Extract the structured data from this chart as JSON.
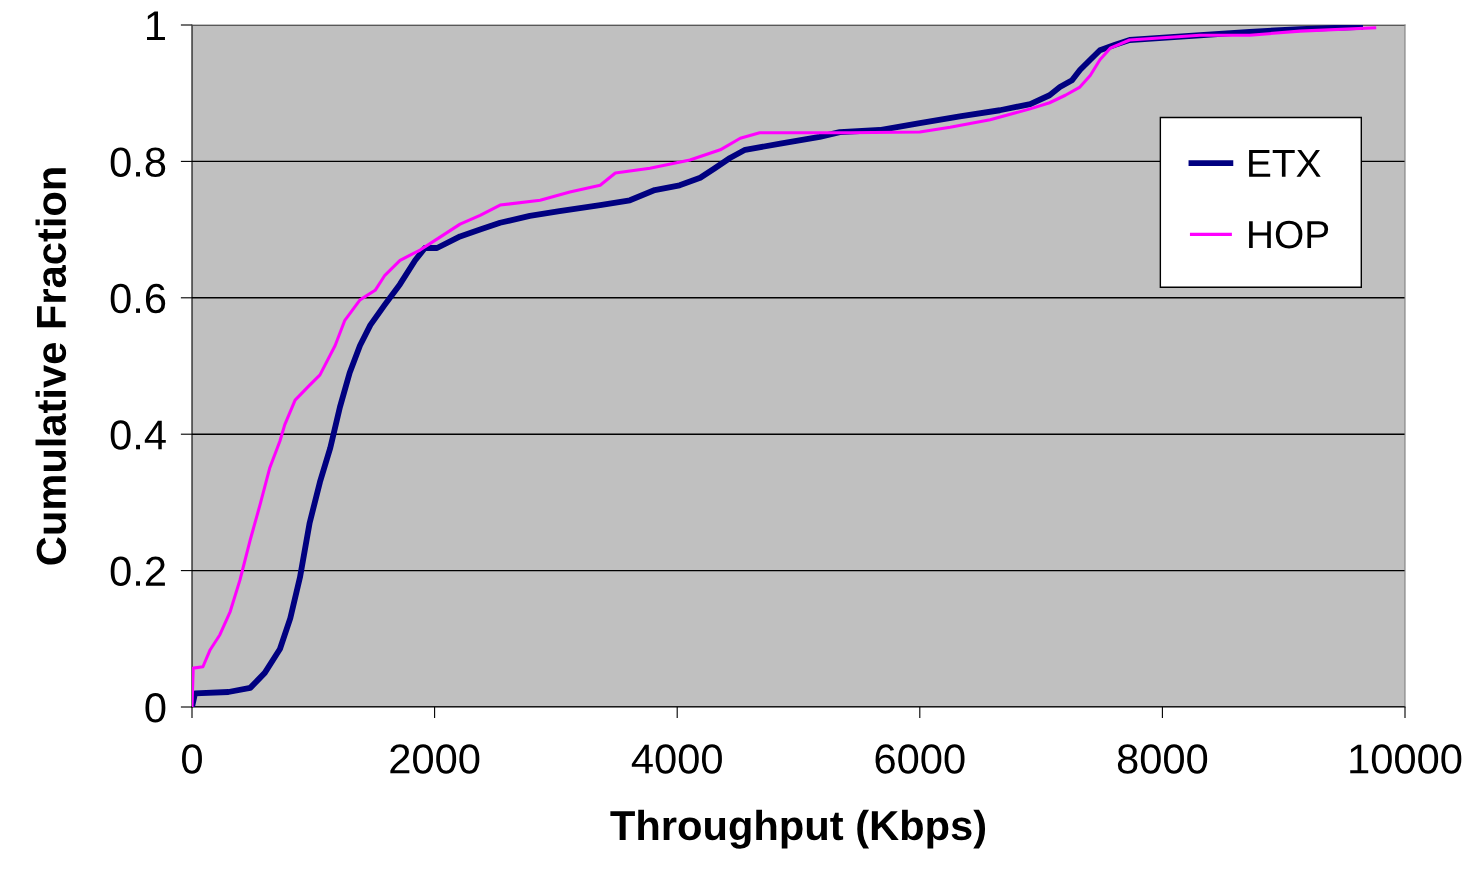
{
  "chart_data": {
    "type": "line",
    "xlabel": "Throughput (Kbps)",
    "ylabel": "Cumulative Fraction",
    "xlim": [
      0,
      10000
    ],
    "xticks": [
      0,
      2000,
      4000,
      6000,
      8000,
      10000
    ],
    "ylim": [
      0,
      1
    ],
    "yticks": [
      0,
      0.2,
      0.4,
      0.6,
      0.8,
      1
    ],
    "grid": "y",
    "legend": "right",
    "marker": "none",
    "line_style": "solid",
    "series": [
      {
        "name": "ETX",
        "color": "#000080",
        "x": [
          0,
          25,
          300,
          480,
          600,
          725,
          810,
          890,
          970,
          1055,
          1140,
          1220,
          1300,
          1385,
          1470,
          1590,
          1715,
          1840,
          1920,
          2020,
          2210,
          2375,
          2540,
          2785,
          3030,
          3365,
          3610,
          3815,
          4020,
          4190,
          4310,
          4435,
          4560,
          4850,
          5175,
          5340,
          5670,
          6000,
          6330,
          6660,
          6910,
          7070,
          7155,
          7255,
          7320,
          7405,
          7485,
          7610,
          7730,
          8310,
          8720,
          9135,
          9630
        ],
        "values": [
          0,
          0.02,
          0.022,
          0.028,
          0.05,
          0.085,
          0.13,
          0.19,
          0.27,
          0.33,
          0.38,
          0.44,
          0.49,
          0.53,
          0.56,
          0.59,
          0.62,
          0.655,
          0.673,
          0.673,
          0.69,
          0.7,
          0.71,
          0.72,
          0.727,
          0.736,
          0.743,
          0.758,
          0.765,
          0.776,
          0.79,
          0.805,
          0.817,
          0.826,
          0.836,
          0.843,
          0.846,
          0.856,
          0.866,
          0.875,
          0.884,
          0.897,
          0.909,
          0.919,
          0.934,
          0.949,
          0.963,
          0.971,
          0.978,
          0.985,
          0.99,
          0.994,
          0.997
        ]
      },
      {
        "name": "HOP",
        "color": "#ff00ff",
        "x": [
          0,
          10,
          90,
          150,
          230,
          315,
          395,
          480,
          560,
          640,
          725,
          765,
          850,
          970,
          1055,
          1180,
          1260,
          1385,
          1510,
          1590,
          1715,
          1880,
          2045,
          2210,
          2375,
          2540,
          2870,
          3115,
          3365,
          3490,
          3775,
          4105,
          4355,
          4520,
          4680,
          5425,
          6000,
          6250,
          6580,
          6910,
          7070,
          7200,
          7320,
          7405,
          7485,
          7570,
          7730,
          8310,
          8720,
          9135,
          9750
        ],
        "values": [
          0,
          0.057,
          0.059,
          0.084,
          0.106,
          0.14,
          0.186,
          0.245,
          0.296,
          0.35,
          0.39,
          0.414,
          0.45,
          0.472,
          0.487,
          0.53,
          0.567,
          0.597,
          0.611,
          0.633,
          0.655,
          0.67,
          0.689,
          0.708,
          0.721,
          0.736,
          0.743,
          0.755,
          0.765,
          0.783,
          0.79,
          0.802,
          0.817,
          0.834,
          0.842,
          0.842,
          0.843,
          0.85,
          0.861,
          0.877,
          0.886,
          0.897,
          0.909,
          0.926,
          0.949,
          0.966,
          0.978,
          0.985,
          0.985,
          0.991,
          0.996
        ]
      }
    ]
  }
}
